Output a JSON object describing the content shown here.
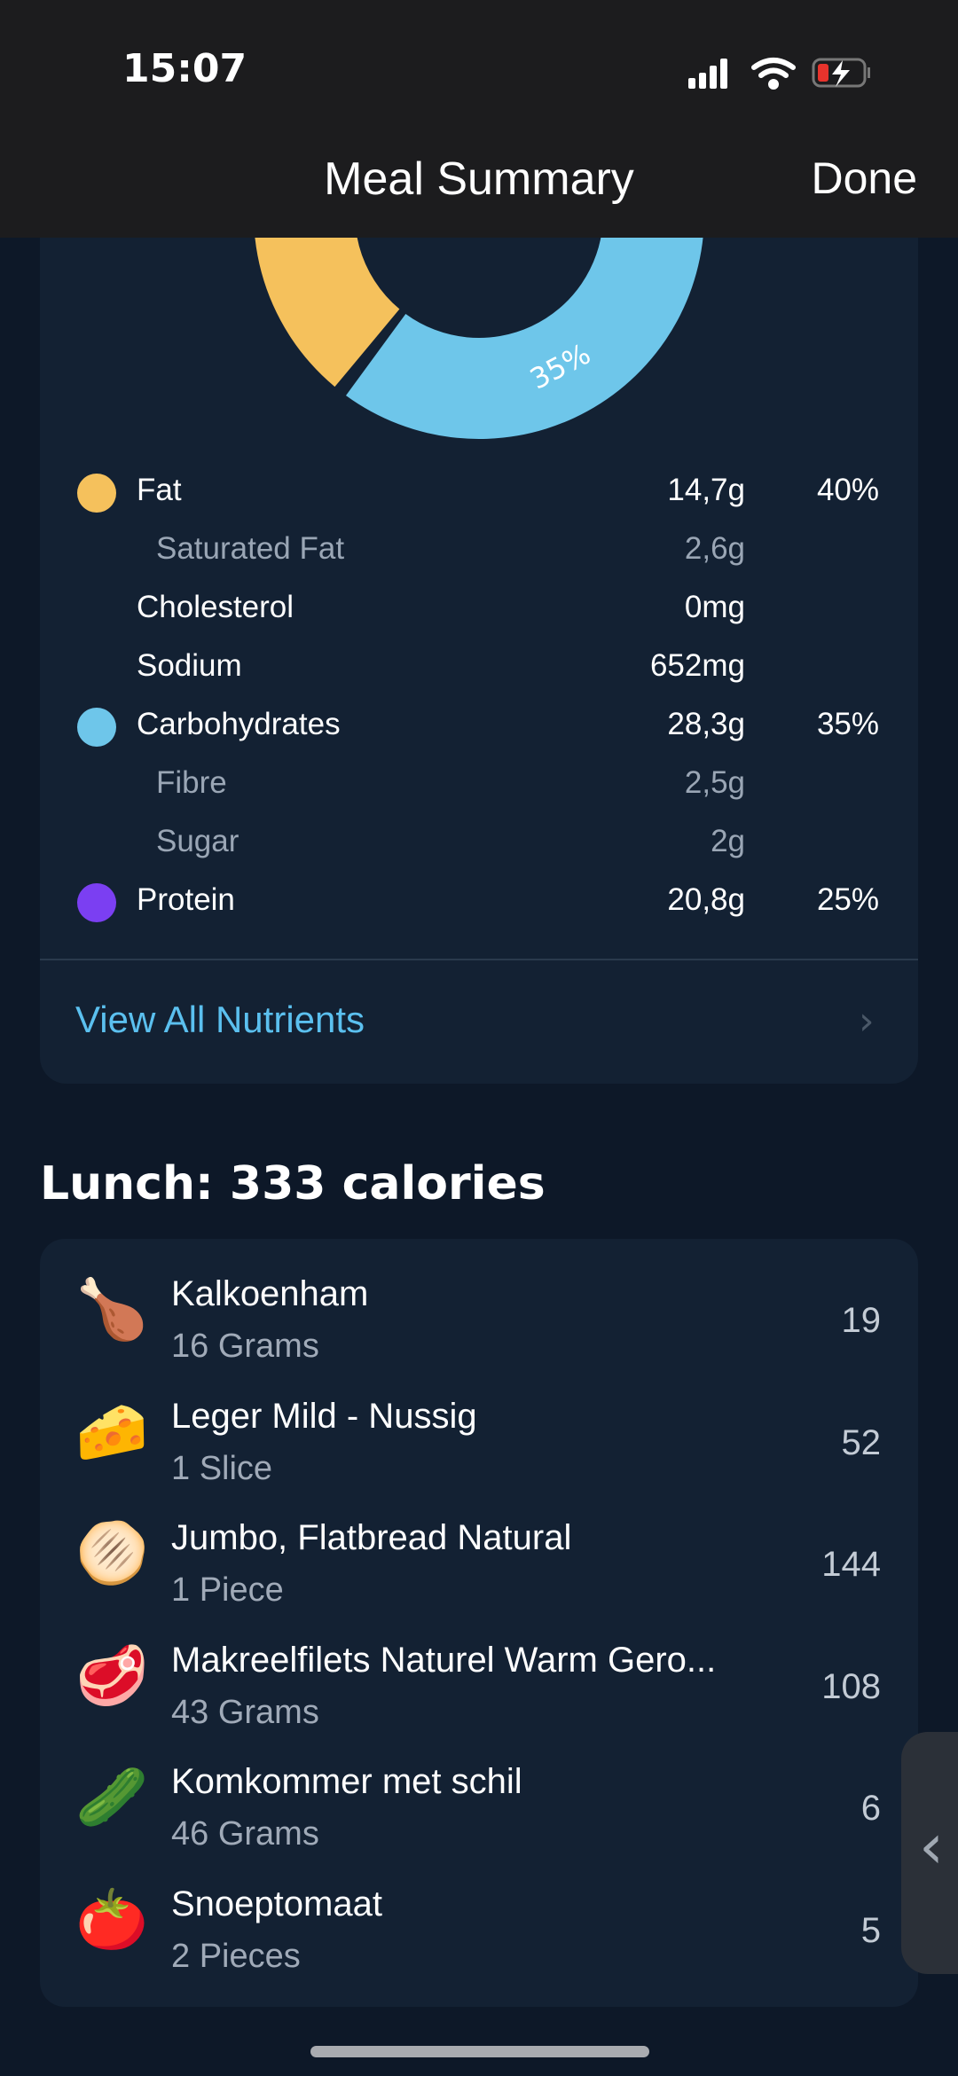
{
  "status_bar": {
    "time": "15:07",
    "icons": [
      "signal-icon",
      "wifi-icon",
      "battery-charging-icon"
    ]
  },
  "header": {
    "title": "Meal Summary",
    "done_label": "Done"
  },
  "colors": {
    "fat": "#f5c15c",
    "carbohydrates": "#6ec6ea",
    "protein": "#7b3ff2",
    "link": "#5bc0ef"
  },
  "chart_data": {
    "type": "pie",
    "donut": true,
    "categories": [
      "Fat",
      "Carbohydrates",
      "Protein"
    ],
    "values": [
      40,
      35,
      25
    ],
    "visible_label": "35%"
  },
  "nutrients": [
    {
      "label": "Fat",
      "value": "14,7g",
      "percent": "40%",
      "dot": "fat"
    },
    {
      "label": "Saturated Fat",
      "value": "2,6g",
      "sub": true
    },
    {
      "label": "Cholesterol",
      "value": "0mg"
    },
    {
      "label": "Sodium",
      "value": "652mg"
    },
    {
      "label": "Carbohydrates",
      "value": "28,3g",
      "percent": "35%",
      "dot": "carbohydrates"
    },
    {
      "label": "Fibre",
      "value": "2,5g",
      "sub": true
    },
    {
      "label": "Sugar",
      "value": "2g",
      "sub": true
    },
    {
      "label": "Protein",
      "value": "20,8g",
      "percent": "25%",
      "dot": "protein"
    }
  ],
  "view_all_label": "View All Nutrients",
  "lunch": {
    "heading": "Lunch: 333 calories",
    "items": [
      {
        "name": "Kalkoenham",
        "amount": "16 Grams",
        "calories": "19",
        "icon": "🍗"
      },
      {
        "name": "Leger Mild - Nussig",
        "amount": "1 Slice",
        "calories": "52",
        "icon": "🧀"
      },
      {
        "name": "Jumbo, Flatbread Natural",
        "amount": "1 Piece",
        "calories": "144",
        "icon": "🫓"
      },
      {
        "name": "Makreelfilets Naturel Warm Gero...",
        "amount": "43 Grams",
        "calories": "108",
        "icon": "🥩"
      },
      {
        "name": "Komkommer met schil",
        "amount": "46 Grams",
        "calories": "6",
        "icon": "🥒"
      },
      {
        "name": "Snoeptomaat",
        "amount": "2 Pieces",
        "calories": "5",
        "icon": "🍅"
      }
    ]
  }
}
